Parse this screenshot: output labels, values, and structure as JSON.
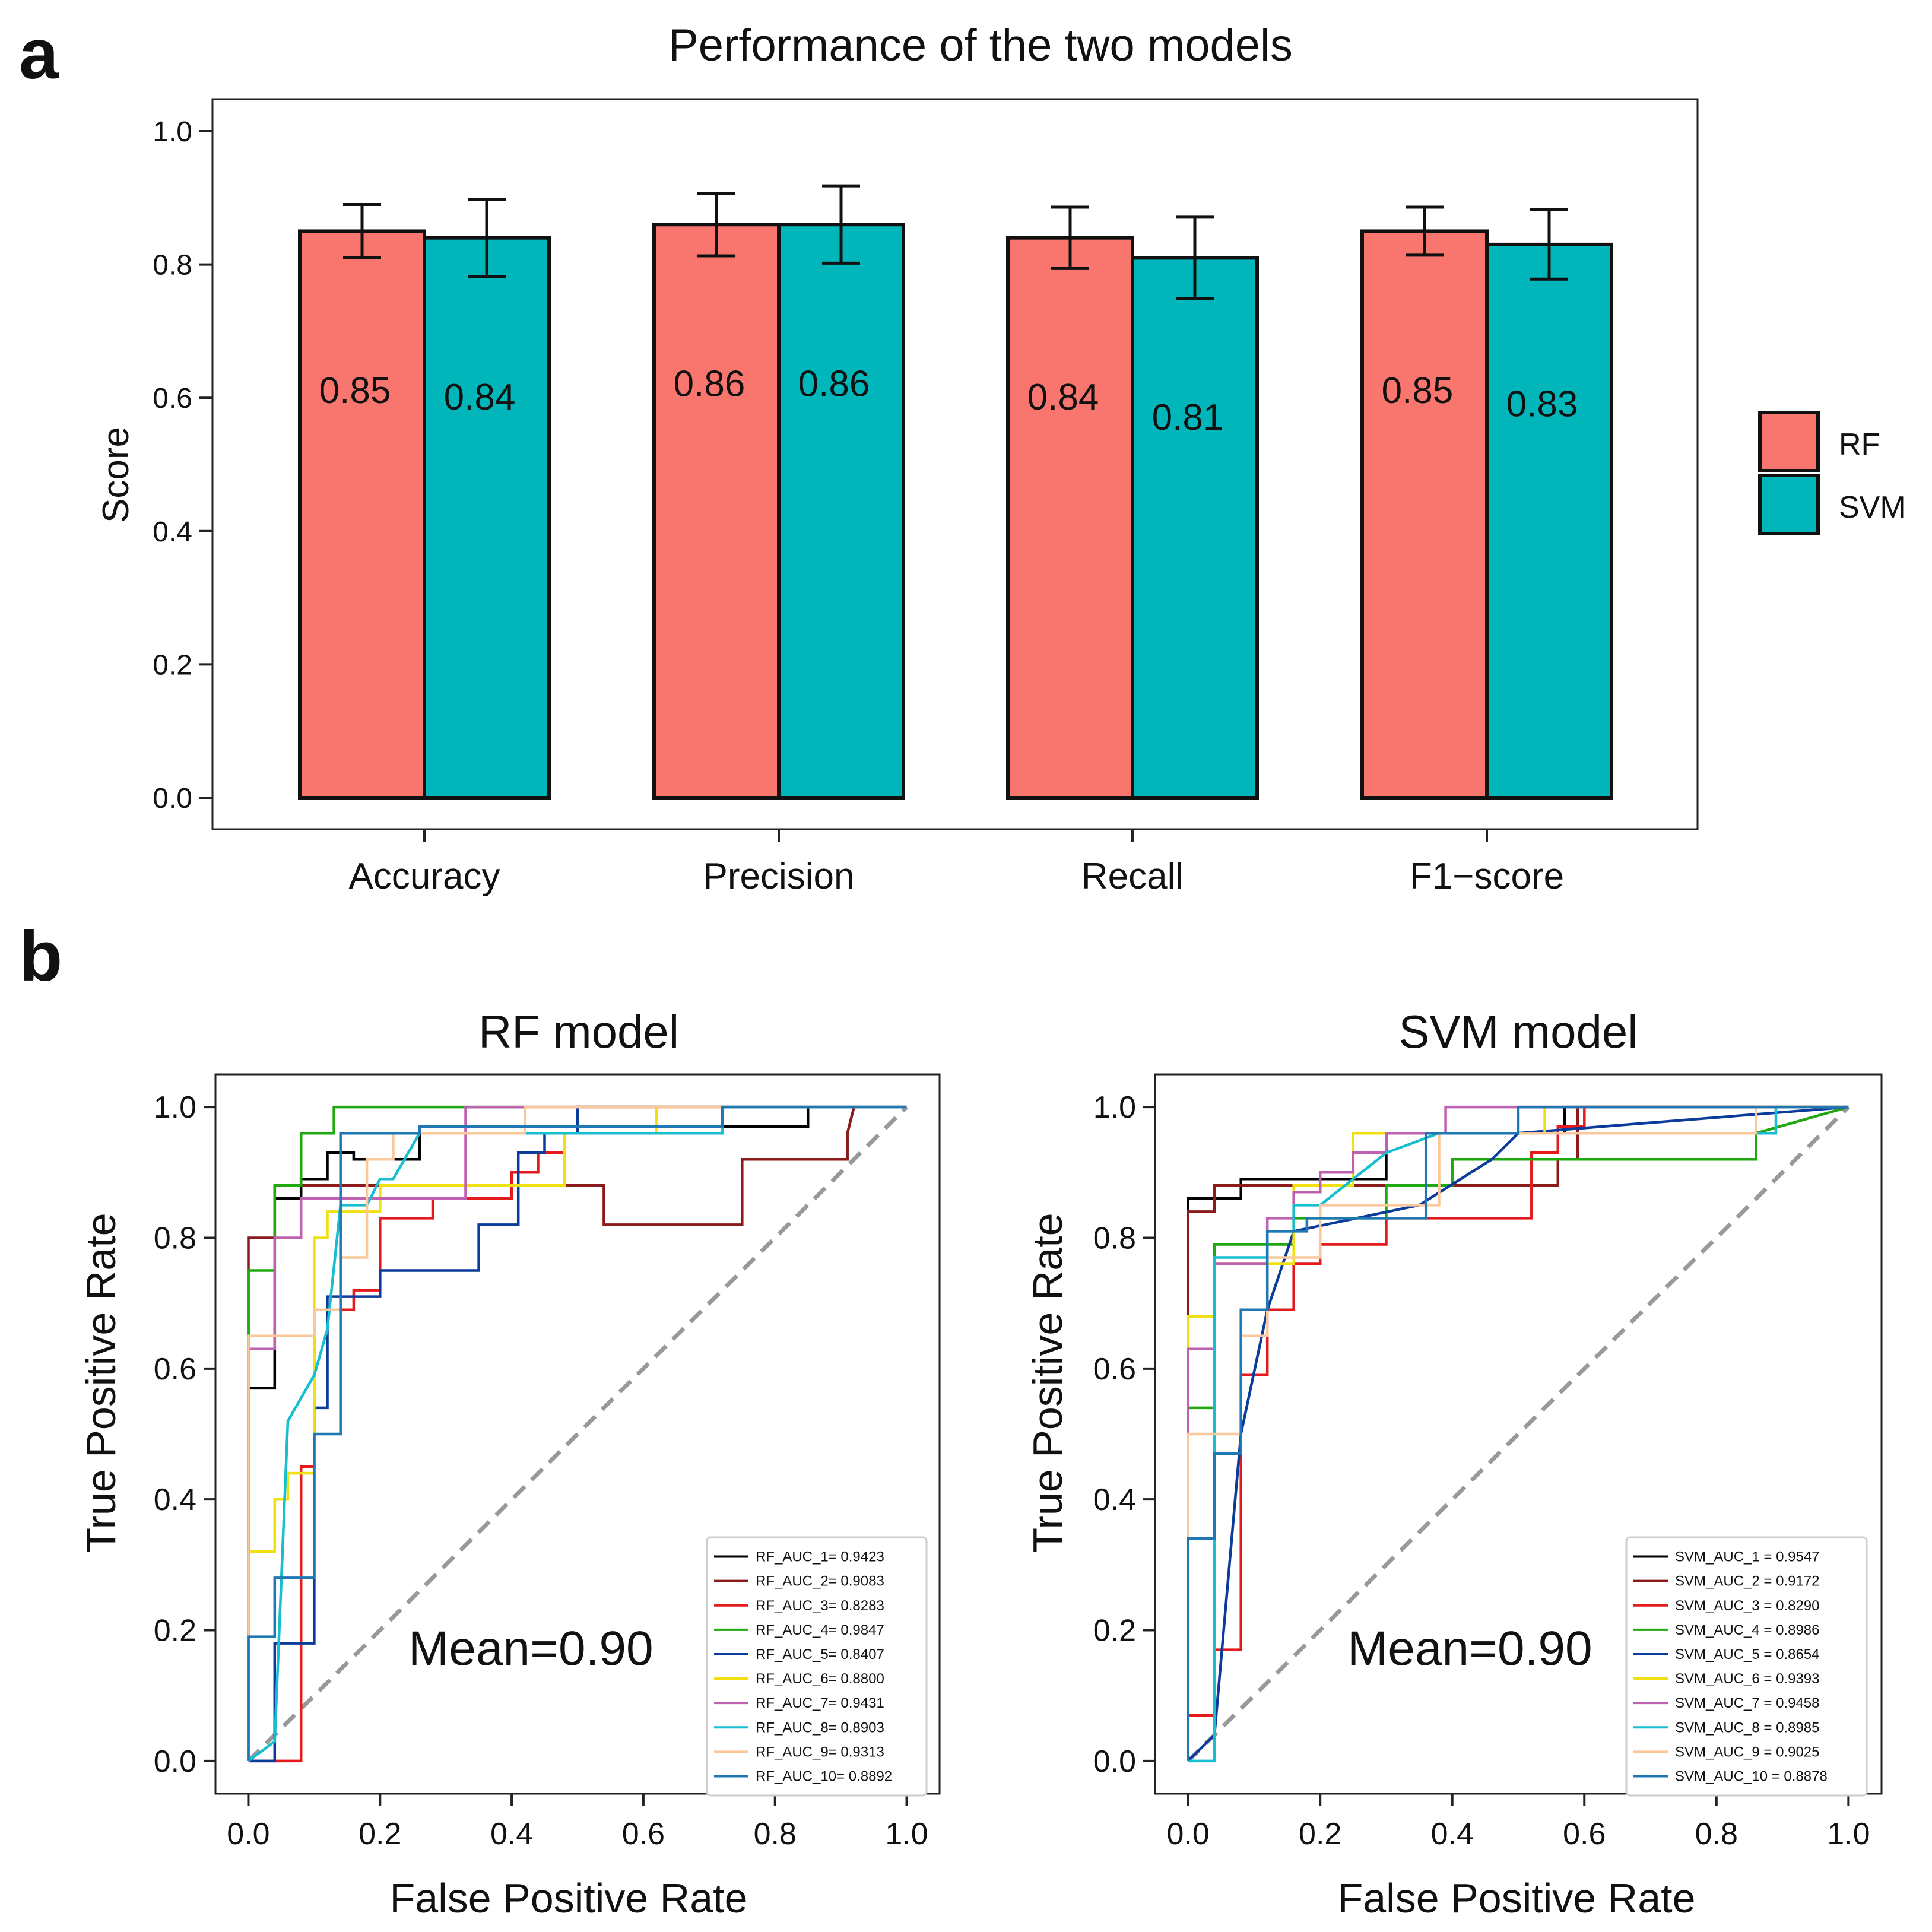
{
  "panel_labels": [
    "a",
    "b"
  ],
  "legend_colors": {
    "RF": "#F8766D",
    "SVM": "#00B6BA"
  },
  "chart_data": [
    {
      "type": "bar",
      "title": "Performance of the two models",
      "xlabel": "",
      "ylabel": "Score",
      "ylim": [
        0,
        1.05
      ],
      "yticks": [
        0.0,
        0.2,
        0.4,
        0.6,
        0.8,
        1.0
      ],
      "ytick_labels": [
        "0.0",
        "0.2",
        "0.4",
        "0.6",
        "0.8",
        "1.0"
      ],
      "categories": [
        "Accuracy",
        "Precision",
        "Recall",
        "F1−score"
      ],
      "series": [
        {
          "name": "RF",
          "color": "#F8766D",
          "values": [
            0.85,
            0.86,
            0.84,
            0.85
          ],
          "errors": [
            0.04,
            0.047,
            0.046,
            0.036
          ],
          "labels": [
            "0.85",
            "0.86",
            "0.84",
            "0.85"
          ]
        },
        {
          "name": "SVM",
          "color": "#00B6BA",
          "values": [
            0.84,
            0.86,
            0.81,
            0.83
          ],
          "errors": [
            0.058,
            0.058,
            0.061,
            0.052
          ],
          "labels": [
            "0.84",
            "0.86",
            "0.81",
            "0.83"
          ]
        }
      ],
      "legend": {
        "position": "right",
        "entries": [
          "RF",
          "SVM"
        ]
      }
    },
    {
      "type": "line",
      "title": "RF model",
      "xlabel": "False Positive Rate",
      "ylabel": "True Positive Rate",
      "xlim": [
        -0.05,
        1.05
      ],
      "ylim": [
        -0.05,
        1.05
      ],
      "xticks": [
        0.0,
        0.2,
        0.4,
        0.6,
        0.8,
        1.0
      ],
      "xtick_labels": [
        "0.0",
        "0.2",
        "0.4",
        "0.6",
        "0.8",
        "1.0"
      ],
      "yticks": [
        0.0,
        0.2,
        0.4,
        0.6,
        0.8,
        1.0
      ],
      "ytick_labels": [
        "0.0",
        "0.2",
        "0.4",
        "0.6",
        "0.8",
        "1.0"
      ],
      "annotation": "Mean=0.90",
      "diagonal": {
        "from": [
          0,
          0
        ],
        "to": [
          1,
          1
        ],
        "color": "#999999",
        "style": "dashed"
      },
      "legend": {
        "position": "lower right"
      },
      "series": [
        {
          "name": "RF_AUC_1= 0.9423",
          "color": "#000000",
          "x": [
            0,
            0,
            0.04,
            0.04,
            0.08,
            0.08,
            0.12,
            0.12,
            0.16,
            0.16,
            0.26,
            0.26,
            0.85,
            0.85,
            1
          ],
          "y": [
            0,
            0.57,
            0.57,
            0.86,
            0.86,
            0.89,
            0.89,
            0.93,
            0.93,
            0.92,
            0.92,
            0.97,
            0.97,
            1,
            1
          ]
        },
        {
          "name": "RF_AUC_2= 0.9083",
          "color": "#8B1A1A",
          "x": [
            0,
            0,
            0.04,
            0.04,
            0.08,
            0.08,
            0.49,
            0.49,
            0.54,
            0.54,
            0.75,
            0.75,
            0.91,
            0.91,
            0.92,
            1
          ],
          "y": [
            0,
            0.8,
            0.8,
            0.88,
            0.88,
            0.88,
            0.88,
            0.88,
            0.88,
            0.82,
            0.82,
            0.92,
            0.92,
            0.96,
            1,
            1
          ]
        },
        {
          "name": "RF_AUC_3= 0.8283",
          "color": "#E41A1C",
          "x": [
            0,
            0.08,
            0.08,
            0.1,
            0.1,
            0.14,
            0.14,
            0.16,
            0.16,
            0.2,
            0.2,
            0.28,
            0.28,
            0.36,
            0.36,
            0.4,
            0.4,
            0.44,
            0.44,
            0.48,
            0.48,
            0.5,
            0.5,
            1
          ],
          "y": [
            0,
            0,
            0.45,
            0.45,
            0.69,
            0.69,
            0.69,
            0.69,
            0.72,
            0.72,
            0.83,
            0.83,
            0.86,
            0.86,
            0.86,
            0.86,
            0.9,
            0.9,
            0.93,
            0.93,
            0.96,
            0.96,
            1,
            1
          ]
        },
        {
          "name": "RF_AUC_4= 0.9847",
          "color": "#1FA80F",
          "x": [
            0,
            0,
            0.02,
            0.02,
            0.04,
            0.04,
            0.08,
            0.08,
            0.13,
            0.13,
            0.33,
            1
          ],
          "y": [
            0,
            0.75,
            0.75,
            0.75,
            0.75,
            0.88,
            0.88,
            0.96,
            0.96,
            1,
            1,
            1
          ]
        },
        {
          "name": "RF_AUC_5= 0.8407",
          "color": "#0B3C9C",
          "x": [
            0,
            0.04,
            0.04,
            0.1,
            0.1,
            0.12,
            0.12,
            0.16,
            0.16,
            0.2,
            0.2,
            0.35,
            0.35,
            0.38,
            0.38,
            0.41,
            0.41,
            0.45,
            0.45,
            0.5,
            0.5,
            1
          ],
          "y": [
            0,
            0,
            0.18,
            0.18,
            0.54,
            0.54,
            0.71,
            0.71,
            0.71,
            0.71,
            0.75,
            0.75,
            0.82,
            0.82,
            0.82,
            0.82,
            0.93,
            0.93,
            0.96,
            0.96,
            1,
            1
          ]
        },
        {
          "name": "RF_AUC_6= 0.8800",
          "color": "#F0E010",
          "x": [
            0,
            0,
            0.04,
            0.04,
            0.06,
            0.06,
            0.1,
            0.1,
            0.12,
            0.12,
            0.16,
            0.16,
            0.2,
            0.2,
            0.48,
            0.48,
            0.62,
            0.62,
            1
          ],
          "y": [
            0,
            0.32,
            0.32,
            0.4,
            0.4,
            0.44,
            0.44,
            0.8,
            0.8,
            0.84,
            0.84,
            0.84,
            0.84,
            0.88,
            0.88,
            0.96,
            0.96,
            1,
            1
          ]
        },
        {
          "name": "RF_AUC_7= 0.9431",
          "color": "#C060B0",
          "x": [
            0,
            0,
            0.04,
            0.04,
            0.08,
            0.08,
            0.12,
            0.12,
            0.33,
            0.33,
            1
          ],
          "y": [
            0,
            0.63,
            0.63,
            0.8,
            0.8,
            0.86,
            0.86,
            0.86,
            0.86,
            1,
            1
          ]
        },
        {
          "name": "RF_AUC_8= 0.8903",
          "color": "#17BECF",
          "x": [
            0,
            0.04,
            0.04,
            0.06,
            0.06,
            0.1,
            0.1,
            0.12,
            0.12,
            0.14,
            0.14,
            0.18,
            0.18,
            0.2,
            0.2,
            0.22,
            0.22,
            0.26,
            0.26,
            0.72,
            0.72,
            0.92,
            1
          ],
          "y": [
            0,
            0.03,
            0.03,
            0.52,
            0.52,
            0.59,
            0.59,
            0.66,
            0.66,
            0.85,
            0.85,
            0.85,
            0.85,
            0.89,
            0.89,
            0.89,
            0.89,
            0.96,
            0.96,
            0.96,
            1,
            1,
            1
          ]
        },
        {
          "name": "RF_AUC_9= 0.9313",
          "color": "#F9C89B",
          "x": [
            0,
            0,
            0.02,
            0.02,
            0.1,
            0.1,
            0.14,
            0.14,
            0.18,
            0.18,
            0.22,
            0.22,
            0.42,
            0.42,
            0.72,
            0.72,
            1
          ],
          "y": [
            0,
            0.65,
            0.65,
            0.65,
            0.65,
            0.69,
            0.69,
            0.77,
            0.77,
            0.92,
            0.92,
            0.96,
            0.96,
            1,
            1,
            1,
            1
          ]
        },
        {
          "name": "RF_AUC_10= 0.8892",
          "color": "#1F78B4",
          "x": [
            0,
            0,
            0.04,
            0.04,
            0.06,
            0.06,
            0.1,
            0.1,
            0.14,
            0.14,
            0.16,
            0.16,
            0.26,
            0.26,
            0.72,
            0.72,
            1
          ],
          "y": [
            0,
            0.19,
            0.19,
            0.28,
            0.28,
            0.28,
            0.28,
            0.5,
            0.5,
            0.96,
            0.96,
            0.96,
            0.96,
            0.97,
            0.97,
            1,
            1
          ]
        }
      ]
    },
    {
      "type": "line",
      "title": "SVM model",
      "xlabel": "False Positive Rate",
      "ylabel": "True Positive Rate",
      "xlim": [
        -0.05,
        1.05
      ],
      "ylim": [
        -0.05,
        1.05
      ],
      "xticks": [
        0.0,
        0.2,
        0.4,
        0.6,
        0.8,
        1.0
      ],
      "xtick_labels": [
        "0.0",
        "0.2",
        "0.4",
        "0.6",
        "0.8",
        "1.0"
      ],
      "yticks": [
        0.0,
        0.2,
        0.4,
        0.6,
        0.8,
        1.0
      ],
      "ytick_labels": [
        "0.0",
        "0.2",
        "0.4",
        "0.6",
        "0.8",
        "1.0"
      ],
      "annotation": "Mean=0.90",
      "diagonal": {
        "from": [
          0,
          0
        ],
        "to": [
          1,
          1
        ],
        "color": "#999999",
        "style": "dashed"
      },
      "legend": {
        "position": "lower right"
      },
      "series": [
        {
          "name": "SVM_AUC_1 = 0.9547",
          "color": "#000000",
          "x": [
            0,
            0,
            0.04,
            0.04,
            0.08,
            0.08,
            0.3,
            0.3,
            0.57,
            0.57,
            1
          ],
          "y": [
            0,
            0.86,
            0.86,
            0.86,
            0.86,
            0.89,
            0.89,
            0.96,
            0.96,
            1,
            1
          ]
        },
        {
          "name": "SVM_AUC_2 = 0.9172",
          "color": "#8B1A1A",
          "x": [
            0,
            0,
            0.02,
            0.02,
            0.04,
            0.04,
            0.08,
            0.08,
            0.56,
            0.56,
            0.59,
            0.59,
            1
          ],
          "y": [
            0,
            0.84,
            0.84,
            0.84,
            0.84,
            0.88,
            0.88,
            0.88,
            0.88,
            0.92,
            0.92,
            1,
            1
          ]
        },
        {
          "name": "SVM_AUC_3 = 0.8290",
          "color": "#E41A1C",
          "x": [
            0,
            0,
            0.04,
            0.04,
            0.08,
            0.08,
            0.12,
            0.12,
            0.16,
            0.16,
            0.2,
            0.2,
            0.3,
            0.3,
            0.52,
            0.52,
            0.56,
            0.56,
            0.6,
            0.6,
            1
          ],
          "y": [
            0,
            0.07,
            0.07,
            0.17,
            0.17,
            0.59,
            0.59,
            0.69,
            0.69,
            0.76,
            0.76,
            0.79,
            0.79,
            0.83,
            0.83,
            0.93,
            0.93,
            0.97,
            0.97,
            1,
            1
          ]
        },
        {
          "name": "SVM_AUC_4 = 0.8986",
          "color": "#1FA80F",
          "x": [
            0,
            0,
            0.04,
            0.04,
            0.08,
            0.08,
            0.16,
            0.16,
            0.3,
            0.3,
            0.4,
            0.4,
            0.86,
            0.86,
            1
          ],
          "y": [
            0,
            0.54,
            0.54,
            0.79,
            0.79,
            0.79,
            0.79,
            0.83,
            0.83,
            0.88,
            0.88,
            0.92,
            0.92,
            0.96,
            1
          ]
        },
        {
          "name": "SVM_AUC_5 = 0.8654",
          "color": "#0B3C9C",
          "x": [
            0,
            0.04,
            0.04,
            0.08,
            0.08,
            0.12,
            0.12,
            0.16,
            0.16,
            0.35,
            0.35,
            0.46,
            0.46,
            0.5,
            0.5,
            1
          ],
          "y": [
            0,
            0.04,
            0.04,
            0.5,
            0.5,
            0.69,
            0.69,
            0.81,
            0.81,
            0.85,
            0.85,
            0.92,
            0.92,
            0.96,
            0.96,
            1
          ]
        },
        {
          "name": "SVM_AUC_6 = 0.9393",
          "color": "#F0E010",
          "x": [
            0,
            0,
            0.04,
            0.04,
            0.16,
            0.16,
            0.25,
            0.25,
            0.54,
            0.54,
            1
          ],
          "y": [
            0,
            0.68,
            0.68,
            0.76,
            0.76,
            0.88,
            0.88,
            0.96,
            0.96,
            1,
            1
          ]
        },
        {
          "name": "SVM_AUC_7 = 0.9458",
          "color": "#C060B0",
          "x": [
            0,
            0,
            0.04,
            0.04,
            0.12,
            0.12,
            0.16,
            0.16,
            0.2,
            0.2,
            0.25,
            0.25,
            0.3,
            0.3,
            0.39,
            0.39,
            1
          ],
          "y": [
            0,
            0.63,
            0.63,
            0.76,
            0.76,
            0.83,
            0.83,
            0.87,
            0.87,
            0.9,
            0.9,
            0.93,
            0.93,
            0.96,
            0.96,
            1,
            1
          ]
        },
        {
          "name": "SVM_AUC_8 = 0.8985",
          "color": "#17BECF",
          "x": [
            0,
            0.04,
            0.04,
            0.08,
            0.08,
            0.12,
            0.12,
            0.16,
            0.16,
            0.2,
            0.2,
            0.3,
            0.3,
            0.38,
            0.38,
            0.89,
            0.89,
            1
          ],
          "y": [
            0,
            0,
            0.77,
            0.77,
            0.77,
            0.77,
            0.81,
            0.81,
            0.85,
            0.85,
            0.85,
            0.93,
            0.93,
            0.96,
            0.96,
            0.96,
            1,
            1
          ]
        },
        {
          "name": "SVM_AUC_9 = 0.9025",
          "color": "#F9C89B",
          "x": [
            0,
            0,
            0.04,
            0.04,
            0.08,
            0.08,
            0.12,
            0.12,
            0.2,
            0.2,
            0.38,
            0.38,
            0.86,
            0.86,
            1
          ],
          "y": [
            0,
            0.5,
            0.5,
            0.5,
            0.5,
            0.65,
            0.65,
            0.77,
            0.77,
            0.85,
            0.85,
            0.96,
            0.96,
            1,
            1
          ]
        },
        {
          "name": "SVM_AUC_10 = 0.8878",
          "color": "#1F78B4",
          "x": [
            0,
            0,
            0.04,
            0.04,
            0.08,
            0.08,
            0.12,
            0.12,
            0.14,
            0.14,
            0.18,
            0.18,
            0.36,
            0.36,
            0.5,
            0.5,
            1
          ],
          "y": [
            0,
            0.34,
            0.34,
            0.47,
            0.47,
            0.69,
            0.69,
            0.81,
            0.81,
            0.81,
            0.81,
            0.83,
            0.83,
            0.96,
            0.96,
            1,
            1
          ]
        }
      ]
    }
  ]
}
